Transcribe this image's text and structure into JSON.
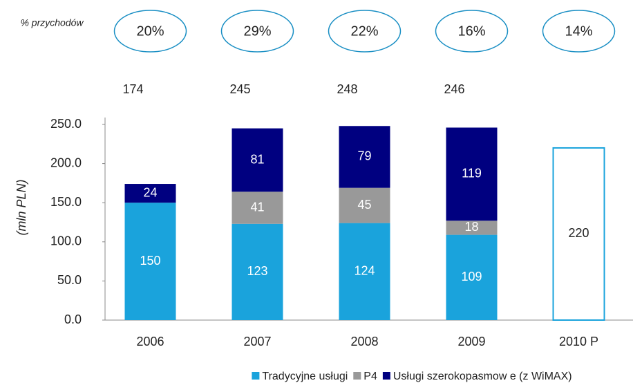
{
  "chart_data": {
    "type": "bar",
    "stacked": true,
    "categories": [
      "2006",
      "2007",
      "2008",
      "2009",
      "2010 P"
    ],
    "series": [
      {
        "name": "Tradycyjne usługi",
        "color": "#1aa3dc",
        "values": [
          150,
          123,
          124,
          109,
          null
        ]
      },
      {
        "name": "P4",
        "color": "#999999",
        "values": [
          null,
          41,
          45,
          18,
          null
        ]
      },
      {
        "name": "Usługi szerokopasmow e (z WiMAX)",
        "color": "#000080",
        "values": [
          24,
          81,
          79,
          119,
          null
        ]
      }
    ],
    "forecast": {
      "color": "#1aa3dc",
      "values": [
        null,
        null,
        null,
        null,
        220
      ]
    },
    "totals": [
      174,
      245,
      248,
      246,
      null
    ],
    "revenue_share": {
      "label": "% przychodów",
      "values": [
        20,
        29,
        22,
        16,
        14
      ],
      "value_labels": [
        "20%",
        "29%",
        "22%",
        "16%",
        "14%"
      ],
      "color": "#1a8fc4"
    },
    "ylabel": "(mln PLN)",
    "ylim": [
      0,
      250
    ],
    "yticks": [
      {
        "value": 0,
        "label": "0.0"
      },
      {
        "value": 50,
        "label": "50.0"
      },
      {
        "value": 100,
        "label": "100.0"
      },
      {
        "value": 150,
        "label": "150.0"
      },
      {
        "value": 200,
        "label": "200.0"
      },
      {
        "value": 250,
        "label": "250.0"
      }
    ],
    "legend": "bottom"
  }
}
